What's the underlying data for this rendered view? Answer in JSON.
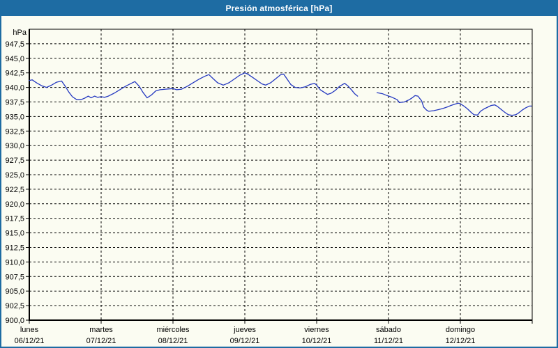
{
  "window": {
    "title": "Presión atmosférica [hPa]"
  },
  "colors": {
    "titlebar": "#1e6ca3",
    "outer_border": "#1e6ca3",
    "background": "#fbfcf2",
    "grid": "#000000",
    "line": "#2438c0",
    "label_text": "#000000"
  },
  "chart_data": {
    "type": "line",
    "title": "Presión atmosférica [hPa]",
    "unit_label": "hPa",
    "grid": "dashed",
    "legend": "none",
    "y_axis": {
      "min": 900,
      "max": 950,
      "tick_step": 2.5,
      "tick_labels": [
        "900,0",
        "902,5",
        "905,0",
        "907,5",
        "910,0",
        "912,5",
        "915,0",
        "917,5",
        "920,0",
        "922,5",
        "925,0",
        "927,5",
        "930,0",
        "932,5",
        "935,0",
        "937,5",
        "940,0",
        "942,5",
        "945,0",
        "947,5"
      ]
    },
    "x_axis": {
      "unit": "days",
      "days": [
        {
          "name": "lunes",
          "date": "06/12/21"
        },
        {
          "name": "martes",
          "date": "07/12/21"
        },
        {
          "name": "miércoles",
          "date": "08/12/21"
        },
        {
          "name": "jueves",
          "date": "09/12/21"
        },
        {
          "name": "viernes",
          "date": "10/12/21"
        },
        {
          "name": "sábado",
          "date": "11/12/21"
        },
        {
          "name": "domingo",
          "date": "12/12/21"
        }
      ]
    },
    "series": [
      {
        "name": "Presión atmosférica",
        "color": "#2438c0",
        "segments": [
          [
            [
              0.0,
              941.2
            ],
            [
              0.04,
              941.3
            ],
            [
              0.1,
              940.8
            ],
            [
              0.17,
              940.3
            ],
            [
              0.24,
              940.0
            ],
            [
              0.31,
              940.4
            ],
            [
              0.38,
              940.9
            ],
            [
              0.45,
              941.1
            ],
            [
              0.5,
              940.2
            ],
            [
              0.55,
              939.2
            ],
            [
              0.6,
              938.4
            ],
            [
              0.66,
              937.9
            ],
            [
              0.72,
              937.9
            ],
            [
              0.78,
              938.2
            ],
            [
              0.82,
              938.5
            ],
            [
              0.86,
              938.2
            ],
            [
              0.91,
              938.5
            ],
            [
              0.95,
              938.3
            ],
            [
              1.0,
              938.4
            ],
            [
              1.05,
              938.3
            ],
            [
              1.1,
              938.5
            ],
            [
              1.18,
              939.0
            ],
            [
              1.26,
              939.6
            ],
            [
              1.34,
              940.2
            ],
            [
              1.42,
              940.7
            ],
            [
              1.47,
              941.0
            ],
            [
              1.53,
              940.2
            ],
            [
              1.58,
              939.2
            ],
            [
              1.64,
              938.2
            ],
            [
              1.7,
              938.7
            ],
            [
              1.76,
              939.4
            ],
            [
              1.82,
              939.6
            ],
            [
              1.9,
              939.7
            ],
            [
              2.0,
              939.8
            ],
            [
              2.05,
              939.6
            ],
            [
              2.12,
              939.7
            ],
            [
              2.2,
              940.2
            ],
            [
              2.28,
              940.8
            ],
            [
              2.36,
              941.4
            ],
            [
              2.44,
              941.9
            ],
            [
              2.5,
              942.2
            ],
            [
              2.56,
              941.5
            ],
            [
              2.62,
              940.8
            ],
            [
              2.7,
              940.4
            ],
            [
              2.78,
              940.8
            ],
            [
              2.86,
              941.5
            ],
            [
              2.93,
              942.1
            ],
            [
              3.0,
              942.5
            ],
            [
              3.04,
              942.3
            ],
            [
              3.1,
              941.8
            ],
            [
              3.17,
              941.2
            ],
            [
              3.24,
              940.6
            ],
            [
              3.29,
              940.4
            ],
            [
              3.36,
              940.8
            ],
            [
              3.43,
              941.5
            ],
            [
              3.5,
              942.2
            ],
            [
              3.54,
              942.3
            ],
            [
              3.59,
              941.4
            ],
            [
              3.64,
              940.5
            ],
            [
              3.7,
              940.0
            ],
            [
              3.77,
              939.9
            ],
            [
              3.84,
              940.1
            ],
            [
              3.91,
              940.5
            ],
            [
              3.97,
              940.7
            ],
            [
              4.0,
              940.4
            ],
            [
              4.05,
              939.6
            ],
            [
              4.1,
              939.2
            ],
            [
              4.15,
              938.8
            ],
            [
              4.2,
              939.0
            ],
            [
              4.26,
              939.5
            ],
            [
              4.32,
              940.2
            ],
            [
              4.39,
              940.7
            ],
            [
              4.44,
              940.2
            ],
            [
              4.49,
              939.5
            ],
            [
              4.53,
              938.9
            ],
            [
              4.57,
              938.5
            ]
          ],
          [
            [
              4.84,
              939.1
            ],
            [
              4.92,
              938.9
            ],
            [
              4.98,
              938.6
            ],
            [
              5.05,
              938.3
            ],
            [
              5.12,
              937.9
            ],
            [
              5.15,
              937.4
            ],
            [
              5.22,
              937.5
            ],
            [
              5.29,
              937.9
            ],
            [
              5.34,
              938.3
            ],
            [
              5.37,
              938.6
            ],
            [
              5.41,
              938.5
            ],
            [
              5.46,
              937.7
            ],
            [
              5.49,
              936.6
            ],
            [
              5.53,
              936.1
            ],
            [
              5.56,
              935.9
            ],
            [
              5.63,
              936.0
            ],
            [
              5.7,
              936.2
            ],
            [
              5.76,
              936.4
            ],
            [
              5.83,
              936.7
            ],
            [
              5.87,
              936.9
            ],
            [
              5.92,
              937.1
            ],
            [
              5.97,
              937.3
            ],
            [
              6.0,
              937.2
            ],
            [
              6.05,
              936.8
            ],
            [
              6.1,
              936.3
            ],
            [
              6.15,
              935.7
            ],
            [
              6.19,
              935.3
            ],
            [
              6.24,
              935.25
            ],
            [
              6.28,
              935.9
            ],
            [
              6.33,
              936.3
            ],
            [
              6.38,
              936.6
            ],
            [
              6.43,
              936.9
            ],
            [
              6.48,
              937.0
            ],
            [
              6.52,
              936.7
            ],
            [
              6.57,
              936.2
            ],
            [
              6.62,
              935.7
            ],
            [
              6.67,
              935.3
            ],
            [
              6.72,
              935.2
            ],
            [
              6.77,
              935.3
            ],
            [
              6.81,
              935.6
            ],
            [
              6.86,
              936.1
            ],
            [
              6.91,
              936.5
            ],
            [
              6.96,
              936.8
            ],
            [
              6.99,
              936.8
            ]
          ]
        ]
      }
    ]
  }
}
